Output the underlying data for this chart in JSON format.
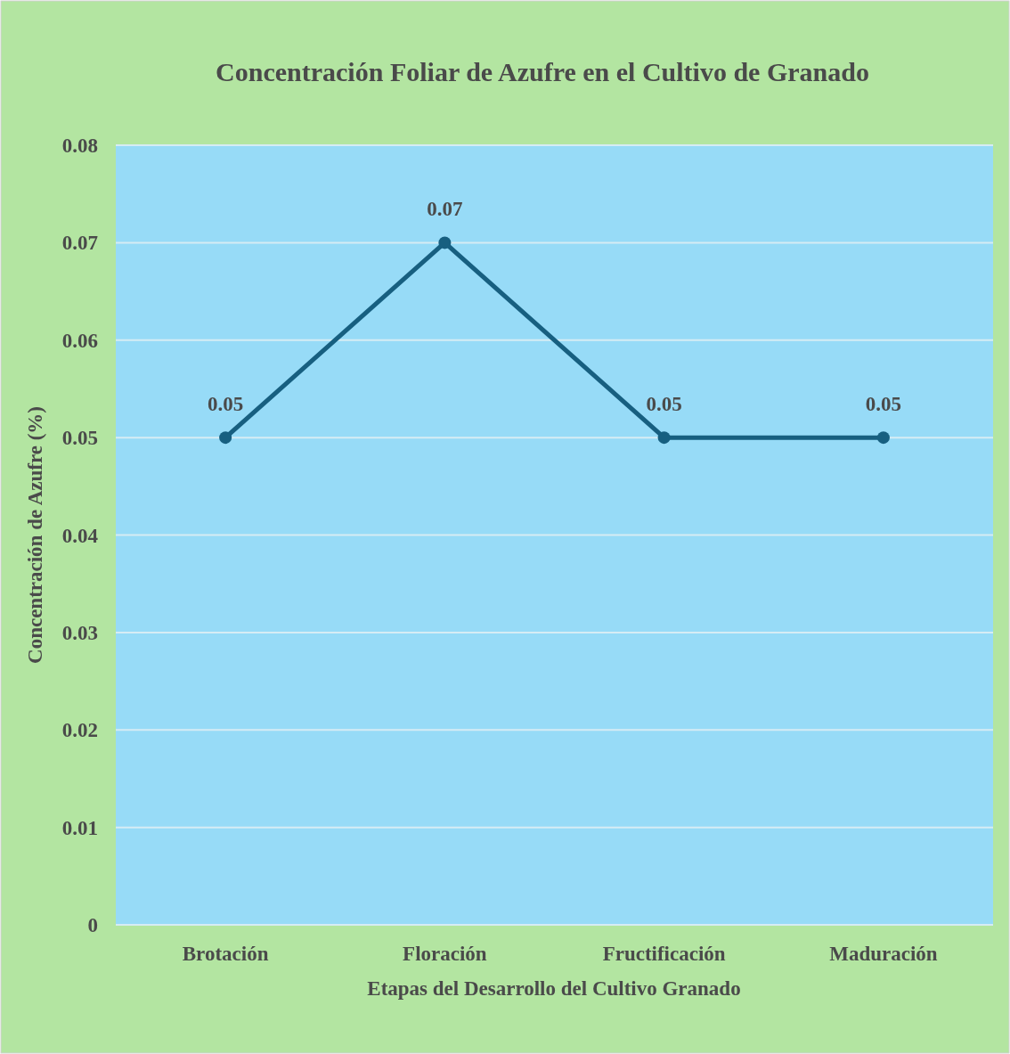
{
  "chart_data": {
    "type": "line",
    "title": "Concentración Foliar de Azufre en el Cultivo de Granado",
    "xlabel": "Etapas del Desarrollo del Cultivo Granado",
    "ylabel": "Concentración de Azufre (%)",
    "categories": [
      "Brotación",
      "Floración",
      "Fructificación",
      "Maduración"
    ],
    "series": [
      {
        "color": "#175f80",
        "values": [
          0.05,
          0.07,
          0.05,
          0.05
        ]
      }
    ],
    "ylim": [
      0,
      0.08
    ],
    "yticks": [
      0,
      0.01,
      0.02,
      0.03,
      0.04,
      0.05,
      0.06,
      0.07,
      0.08
    ],
    "grid": "y",
    "marker": "circle",
    "line_style": "solid",
    "data_labels": true
  }
}
